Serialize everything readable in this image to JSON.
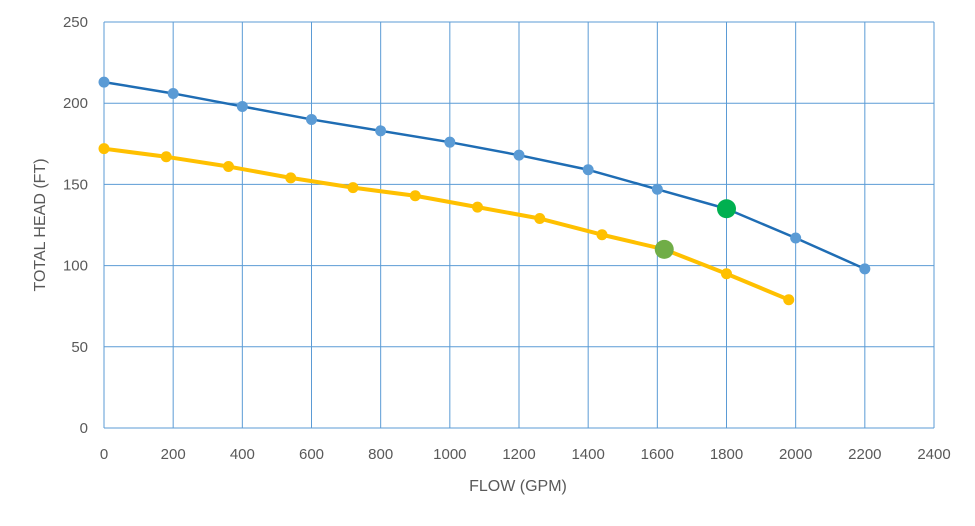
{
  "chart_data": {
    "type": "line",
    "xlabel": "FLOW (GPM)",
    "ylabel": "TOTAL HEAD (FT)",
    "xlim": [
      0,
      2400
    ],
    "ylim": [
      0,
      250
    ],
    "xticks": [
      0,
      200,
      400,
      600,
      800,
      1000,
      1200,
      1400,
      1600,
      1800,
      2000,
      2200,
      2400
    ],
    "yticks": [
      0,
      50,
      100,
      150,
      200,
      250
    ],
    "grid": true,
    "legend": "none",
    "series": [
      {
        "color": "#1f6db4",
        "marker_color": "#5b9bd5",
        "points": [
          [
            0,
            213
          ],
          [
            200,
            206
          ],
          [
            400,
            198
          ],
          [
            600,
            190
          ],
          [
            800,
            183
          ],
          [
            1000,
            176
          ],
          [
            1200,
            168
          ],
          [
            1400,
            159
          ],
          [
            1600,
            147
          ],
          [
            1800,
            135
          ],
          [
            2000,
            117
          ],
          [
            2200,
            98
          ]
        ]
      },
      {
        "color": "#ffc000",
        "marker_color": "#ffc000",
        "points": [
          [
            0,
            172
          ],
          [
            180,
            167
          ],
          [
            360,
            161
          ],
          [
            540,
            154
          ],
          [
            720,
            148
          ],
          [
            900,
            143
          ],
          [
            1080,
            136
          ],
          [
            1260,
            129
          ],
          [
            1440,
            119
          ],
          [
            1620,
            110
          ],
          [
            1800,
            95
          ],
          [
            1980,
            79
          ]
        ]
      }
    ],
    "highlight_points": [
      {
        "x": 1800,
        "y": 135,
        "color": "#00b050"
      },
      {
        "x": 1620,
        "y": 110,
        "color": "#70ad47"
      }
    ]
  }
}
